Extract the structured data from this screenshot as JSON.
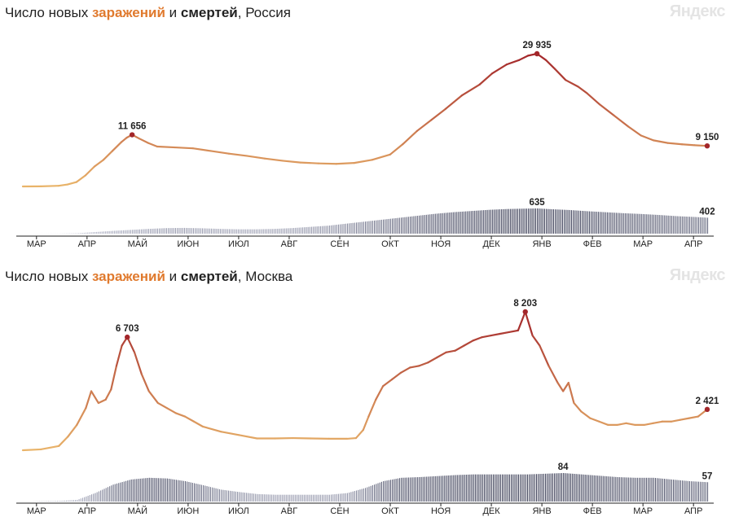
{
  "brand": "Яндекс",
  "colors": {
    "infections_low": "#e9b46a",
    "infections_high": "#a3262a",
    "deaths_low": "#b4b7c9",
    "deaths_high": "#3c3f57",
    "marker": "#a3262a",
    "axis": "#222222"
  },
  "title_parts": {
    "prefix": "Число новых ",
    "infections": "заражений",
    "and": " и ",
    "deaths": "смертей"
  },
  "chart_data": [
    {
      "type": "line",
      "title": "Число новых заражений и смертей, Россия",
      "region": ", Россия",
      "x_ticks": [
        "МАР",
        "АПР",
        "МАЙ",
        "ИЮН",
        "ИЮЛ",
        "АВГ",
        "СЕН",
        "ОКТ",
        "НОЯ",
        "ДЕК",
        "ЯНВ",
        "ФЕВ",
        "МАР",
        "АПР"
      ],
      "series": [
        {
          "kind": "infections",
          "points": [
            [
              0,
              0
            ],
            [
              10,
              30
            ],
            [
              20,
              150
            ],
            [
              25,
              450
            ],
            [
              30,
              1000
            ],
            [
              35,
              2500
            ],
            [
              40,
              4500
            ],
            [
              45,
              6000
            ],
            [
              50,
              8000
            ],
            [
              55,
              10000
            ],
            [
              58,
              11000
            ],
            [
              61,
              11656
            ],
            [
              65,
              10800
            ],
            [
              70,
              9800
            ],
            [
              75,
              9000
            ],
            [
              85,
              8800
            ],
            [
              95,
              8600
            ],
            [
              105,
              8000
            ],
            [
              115,
              7400
            ],
            [
              125,
              6900
            ],
            [
              135,
              6300
            ],
            [
              145,
              5800
            ],
            [
              155,
              5400
            ],
            [
              165,
              5200
            ],
            [
              175,
              5100
            ],
            [
              185,
              5300
            ],
            [
              195,
              6000
            ],
            [
              205,
              7200
            ],
            [
              212,
              9500
            ],
            [
              220,
              12500
            ],
            [
              228,
              15000
            ],
            [
              236,
              17500
            ],
            [
              245,
              20500
            ],
            [
              255,
              23000
            ],
            [
              262,
              25500
            ],
            [
              270,
              27500
            ],
            [
              277,
              28500
            ],
            [
              282,
              29500
            ],
            [
              287,
              29935
            ],
            [
              292,
              28500
            ],
            [
              297,
              26500
            ],
            [
              303,
              24000
            ],
            [
              310,
              22500
            ],
            [
              315,
              21000
            ],
            [
              322,
              18500
            ],
            [
              330,
              16000
            ],
            [
              338,
              13500
            ],
            [
              345,
              11500
            ],
            [
              352,
              10400
            ],
            [
              360,
              9800
            ],
            [
              368,
              9500
            ],
            [
              375,
              9300
            ],
            [
              382,
              9150
            ]
          ],
          "annotations": [
            {
              "label": "11 656",
              "day": 61,
              "value": 11656
            },
            {
              "label": "29 935",
              "day": 287,
              "value": 29935
            },
            {
              "label": "9 150",
              "day": 382,
              "value": 9150
            }
          ]
        },
        {
          "kind": "deaths",
          "points": [
            [
              0,
              0
            ],
            [
              20,
              2
            ],
            [
              30,
              10
            ],
            [
              40,
              40
            ],
            [
              50,
              70
            ],
            [
              60,
              95
            ],
            [
              70,
              120
            ],
            [
              80,
              140
            ],
            [
              90,
              145
            ],
            [
              100,
              135
            ],
            [
              110,
              120
            ],
            [
              120,
              110
            ],
            [
              130,
              110
            ],
            [
              140,
              120
            ],
            [
              150,
              140
            ],
            [
              160,
              170
            ],
            [
              170,
              200
            ],
            [
              180,
              250
            ],
            [
              190,
              300
            ],
            [
              200,
              350
            ],
            [
              210,
              400
            ],
            [
              220,
              450
            ],
            [
              230,
              500
            ],
            [
              240,
              540
            ],
            [
              250,
              570
            ],
            [
              260,
              600
            ],
            [
              270,
              620
            ],
            [
              280,
              630
            ],
            [
              287,
              635
            ],
            [
              295,
              615
            ],
            [
              305,
              595
            ],
            [
              315,
              565
            ],
            [
              325,
              540
            ],
            [
              335,
              515
            ],
            [
              345,
              495
            ],
            [
              355,
              470
            ],
            [
              365,
              440
            ],
            [
              375,
              420
            ],
            [
              382,
              402
            ]
          ],
          "annotations": [
            {
              "label": "635",
              "day": 287,
              "value": 635
            },
            {
              "label": "402",
              "day": 382,
              "value": 402
            }
          ]
        }
      ]
    },
    {
      "type": "line",
      "title": "Число новых заражений и смертей, Москва",
      "region": ", Москва",
      "x_ticks": [
        "МАР",
        "АПР",
        "МАЙ",
        "ИЮН",
        "ИЮЛ",
        "АВГ",
        "СЕН",
        "ОКТ",
        "НОЯ",
        "ДЕК",
        "ЯНВ",
        "ФЕВ",
        "МАР",
        "АПР"
      ],
      "series": [
        {
          "kind": "infections",
          "points": [
            [
              0,
              0
            ],
            [
              10,
              50
            ],
            [
              20,
              250
            ],
            [
              25,
              800
            ],
            [
              30,
              1500
            ],
            [
              35,
              2500
            ],
            [
              38,
              3500
            ],
            [
              42,
              2800
            ],
            [
              46,
              3000
            ],
            [
              49,
              3600
            ],
            [
              52,
              5000
            ],
            [
              55,
              6200
            ],
            [
              58,
              6703
            ],
            [
              62,
              5800
            ],
            [
              66,
              4500
            ],
            [
              70,
              3500
            ],
            [
              75,
              2800
            ],
            [
              80,
              2500
            ],
            [
              85,
              2200
            ],
            [
              90,
              2000
            ],
            [
              95,
              1700
            ],
            [
              100,
              1400
            ],
            [
              110,
              1100
            ],
            [
              120,
              900
            ],
            [
              130,
              700
            ],
            [
              140,
              700
            ],
            [
              150,
              720
            ],
            [
              160,
              700
            ],
            [
              170,
              680
            ],
            [
              180,
              680
            ],
            [
              185,
              720
            ],
            [
              189,
              1200
            ],
            [
              192,
              2000
            ],
            [
              196,
              3000
            ],
            [
              200,
              3800
            ],
            [
              205,
              4200
            ],
            [
              210,
              4600
            ],
            [
              215,
              4900
            ],
            [
              220,
              5000
            ],
            [
              225,
              5200
            ],
            [
              230,
              5500
            ],
            [
              235,
              5800
            ],
            [
              240,
              5900
            ],
            [
              245,
              6200
            ],
            [
              250,
              6500
            ],
            [
              255,
              6700
            ],
            [
              260,
              6800
            ],
            [
              265,
              6900
            ],
            [
              270,
              7000
            ],
            [
              275,
              7100
            ],
            [
              279,
              8203
            ],
            [
              283,
              6800
            ],
            [
              287,
              6200
            ],
            [
              292,
              5000
            ],
            [
              297,
              4000
            ],
            [
              300,
              3500
            ],
            [
              303,
              4000
            ],
            [
              306,
              2800
            ],
            [
              310,
              2300
            ],
            [
              315,
              1900
            ],
            [
              320,
              1700
            ],
            [
              325,
              1500
            ],
            [
              330,
              1500
            ],
            [
              335,
              1600
            ],
            [
              340,
              1500
            ],
            [
              345,
              1500
            ],
            [
              350,
              1600
            ],
            [
              355,
              1700
            ],
            [
              360,
              1700
            ],
            [
              365,
              1800
            ],
            [
              370,
              1900
            ],
            [
              375,
              2000
            ],
            [
              380,
              2421
            ]
          ],
          "annotations": [
            {
              "label": "6 703",
              "day": 58,
              "value": 6703
            },
            {
              "label": "8 203",
              "day": 279,
              "value": 8203
            },
            {
              "label": "2 421",
              "day": 380,
              "value": 2421
            }
          ]
        },
        {
          "kind": "deaths",
          "points": [
            [
              0,
              0
            ],
            [
              20,
              2
            ],
            [
              30,
              5
            ],
            [
              40,
              25
            ],
            [
              50,
              50
            ],
            [
              60,
              65
            ],
            [
              70,
              70
            ],
            [
              80,
              68
            ],
            [
              90,
              60
            ],
            [
              100,
              48
            ],
            [
              110,
              35
            ],
            [
              120,
              28
            ],
            [
              130,
              22
            ],
            [
              140,
              20
            ],
            [
              150,
              20
            ],
            [
              160,
              20
            ],
            [
              170,
              20
            ],
            [
              180,
              25
            ],
            [
              190,
              40
            ],
            [
              200,
              60
            ],
            [
              210,
              70
            ],
            [
              220,
              72
            ],
            [
              230,
              75
            ],
            [
              240,
              78
            ],
            [
              250,
              80
            ],
            [
              260,
              80
            ],
            [
              270,
              80
            ],
            [
              280,
              80
            ],
            [
              290,
              82
            ],
            [
              300,
              84
            ],
            [
              310,
              80
            ],
            [
              320,
              76
            ],
            [
              330,
              72
            ],
            [
              340,
              70
            ],
            [
              350,
              70
            ],
            [
              360,
              65
            ],
            [
              370,
              60
            ],
            [
              380,
              57
            ]
          ],
          "annotations": [
            {
              "label": "84",
              "day": 300,
              "value": 84
            },
            {
              "label": "57",
              "day": 380,
              "value": 57
            }
          ]
        }
      ]
    }
  ]
}
